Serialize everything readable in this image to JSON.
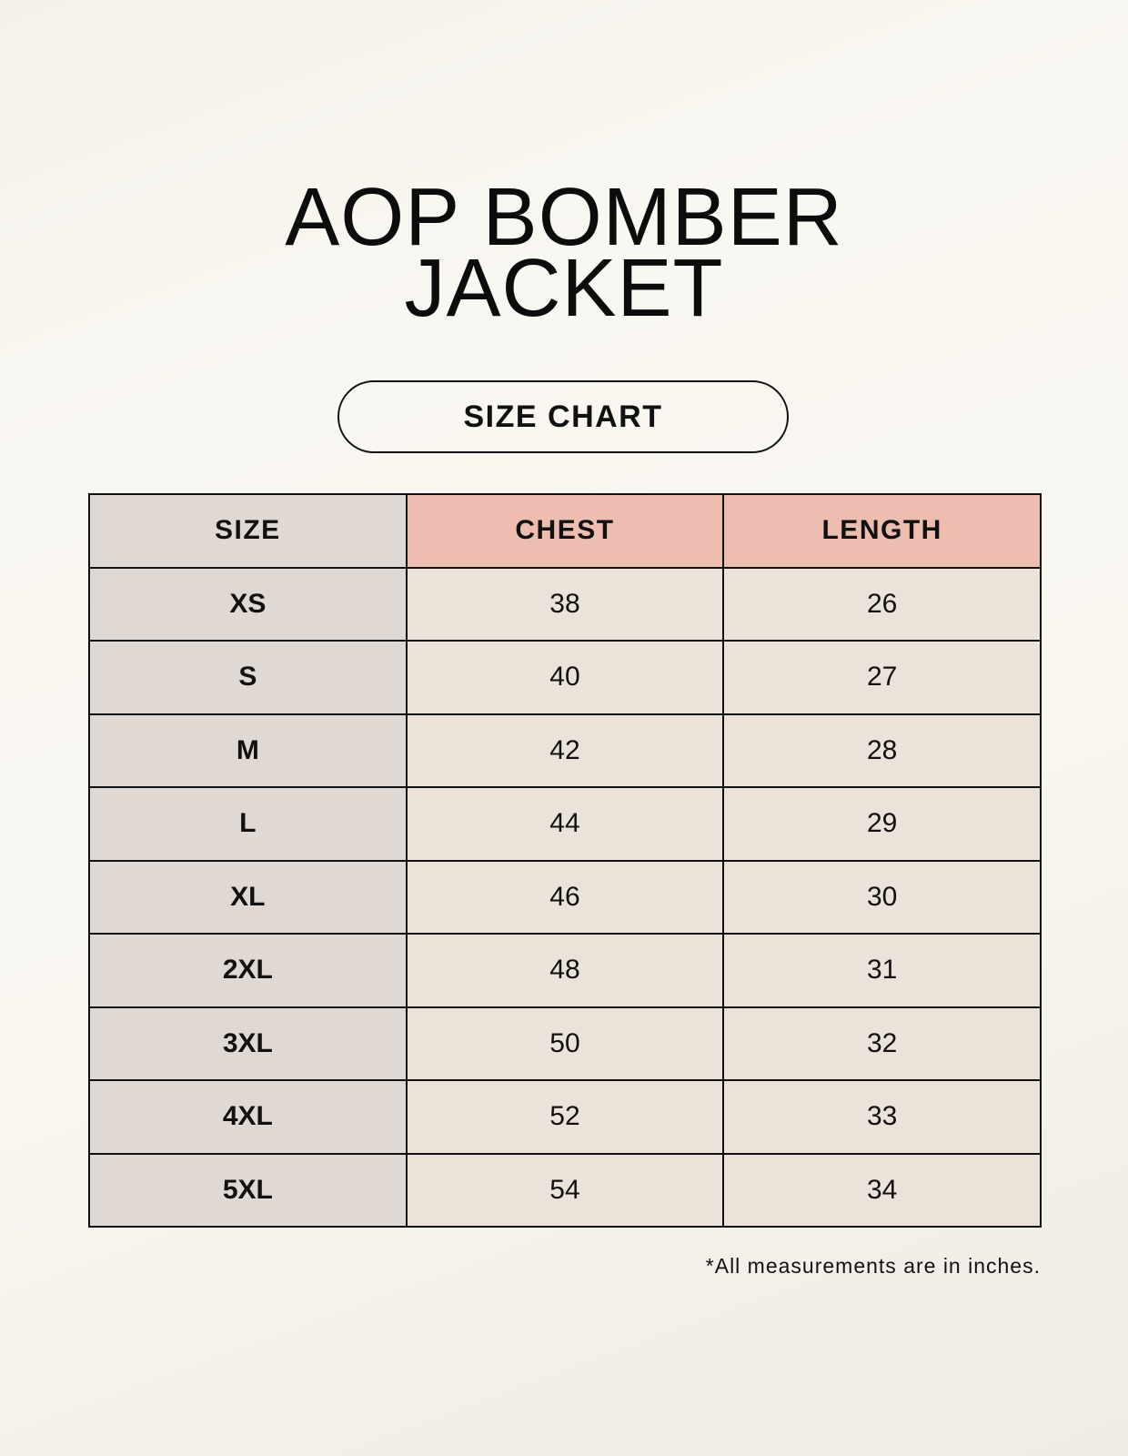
{
  "title": {
    "line1": "AOP BOMBER",
    "line2": "JACKET"
  },
  "subtitle": "SIZE CHART",
  "table": {
    "headers": [
      "SIZE",
      "CHEST",
      "LENGTH"
    ],
    "rows": [
      [
        "XS",
        "38",
        "26"
      ],
      [
        "S",
        "40",
        "27"
      ],
      [
        "M",
        "42",
        "28"
      ],
      [
        "L",
        "44",
        "29"
      ],
      [
        "XL",
        "46",
        "30"
      ],
      [
        "2XL",
        "48",
        "31"
      ],
      [
        "3XL",
        "50",
        "32"
      ],
      [
        "4XL",
        "52",
        "33"
      ],
      [
        "5XL",
        "54",
        "34"
      ]
    ]
  },
  "footnote": "*All measurements are in inches.",
  "colors": {
    "size_column": "#e0d9d3",
    "header_accent": "#edbdaf",
    "cell": "#ebe3da"
  }
}
